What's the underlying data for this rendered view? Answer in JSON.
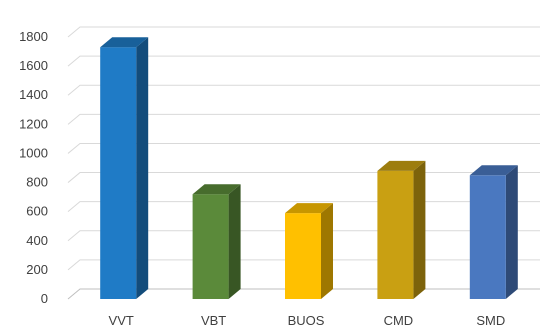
{
  "chart_data": {
    "type": "bar",
    "title": "",
    "xlabel": "",
    "ylabel": "",
    "categories": [
      "VVT",
      "VBT",
      "BUOS",
      "CMD",
      "SMD"
    ],
    "values": [
      1730,
      720,
      590,
      880,
      850
    ],
    "ylim": [
      0,
      1800
    ],
    "yticks": [
      0,
      200,
      400,
      600,
      800,
      1000,
      1200,
      1400,
      1600,
      1800
    ],
    "grid": true,
    "three_d": true,
    "colors": [
      "#1f7bc6",
      "#5b8a3a",
      "#ffc000",
      "#c9a012",
      "#4a78c0"
    ]
  }
}
